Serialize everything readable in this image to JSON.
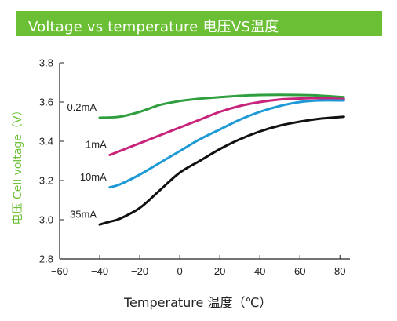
{
  "header": {
    "title": "Voltage vs temperature   电压VS温度"
  },
  "colors": {
    "banner": "#6bbf34",
    "axis": "#222222"
  },
  "chart_data": {
    "type": "line",
    "title": "Voltage vs temperature   电压VS温度",
    "xlabel": "Temperature 温度（℃）",
    "ylabel": "电压 Cell voltage（V）",
    "xlim": [
      -60,
      85
    ],
    "ylim": [
      2.8,
      3.8
    ],
    "xticks": [
      -60,
      -40,
      -20,
      0,
      20,
      40,
      60,
      80
    ],
    "xtick_labels": [
      "−60",
      "−40",
      "−20",
      "0",
      "20",
      "40",
      "60",
      "80"
    ],
    "yticks": [
      2.8,
      3.0,
      3.2,
      3.4,
      3.6,
      3.8
    ],
    "ytick_labels": [
      "2.8",
      "3.0",
      "3.2",
      "3.4",
      "3.6",
      "3.8"
    ],
    "grid": false,
    "series": [
      {
        "name": "0.2mA",
        "color": "#2e9e3e",
        "x": [
          -40,
          -30,
          -20,
          -10,
          0,
          10,
          20,
          30,
          40,
          50,
          60,
          70,
          82
        ],
        "y": [
          3.52,
          3.525,
          3.55,
          3.585,
          3.605,
          3.617,
          3.625,
          3.632,
          3.636,
          3.637,
          3.636,
          3.633,
          3.625
        ]
      },
      {
        "name": "1mA",
        "color": "#c8237a",
        "x": [
          -35,
          -30,
          -20,
          -10,
          0,
          10,
          20,
          30,
          40,
          50,
          60,
          70,
          82
        ],
        "y": [
          3.33,
          3.35,
          3.39,
          3.43,
          3.47,
          3.51,
          3.55,
          3.58,
          3.6,
          3.613,
          3.618,
          3.62,
          3.615
        ]
      },
      {
        "name": "10mA",
        "color": "#1d9ad6",
        "x": [
          -35,
          -30,
          -20,
          -10,
          0,
          10,
          20,
          30,
          40,
          50,
          60,
          70,
          82
        ],
        "y": [
          3.165,
          3.18,
          3.23,
          3.29,
          3.35,
          3.41,
          3.46,
          3.51,
          3.55,
          3.58,
          3.6,
          3.608,
          3.608
        ]
      },
      {
        "name": "35mA",
        "color": "#111111",
        "x": [
          -40,
          -35,
          -30,
          -20,
          -10,
          0,
          10,
          20,
          30,
          40,
          50,
          60,
          70,
          82
        ],
        "y": [
          2.975,
          2.99,
          3.005,
          3.06,
          3.15,
          3.24,
          3.3,
          3.36,
          3.41,
          3.45,
          3.48,
          3.5,
          3.515,
          3.525
        ]
      }
    ]
  }
}
